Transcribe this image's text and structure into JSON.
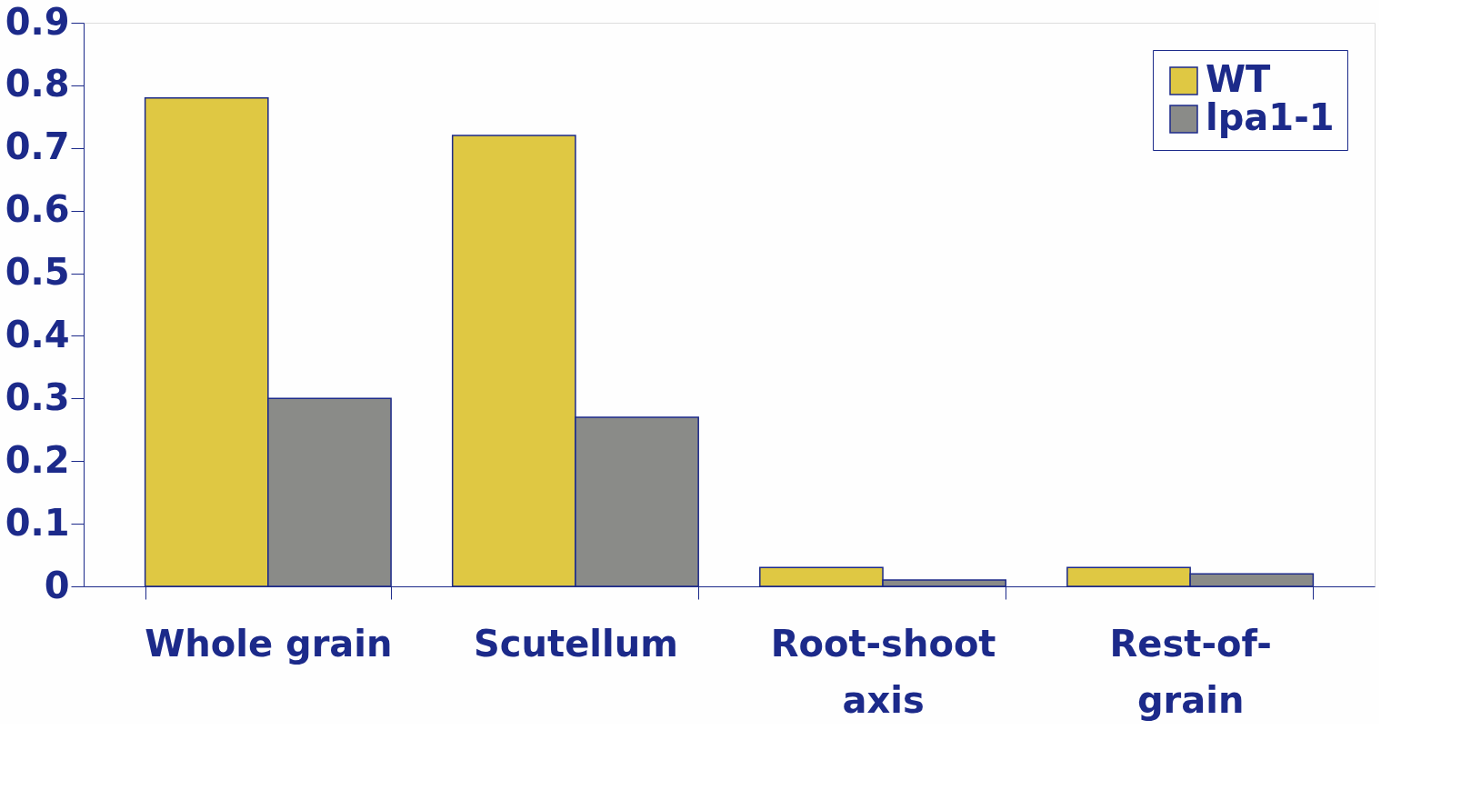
{
  "chart_data": {
    "type": "bar",
    "categories": [
      "Whole grain",
      "Scutellum",
      "Root-shoot axis",
      "Rest-of-grain"
    ],
    "series": [
      {
        "name": "WT",
        "color": "#dfc843",
        "values": [
          0.78,
          0.72,
          0.03,
          0.03
        ]
      },
      {
        "name": "lpa1-1",
        "color": "#8a8b88",
        "values": [
          0.3,
          0.27,
          0.01,
          0.02
        ]
      }
    ],
    "ylim": [
      0,
      0.9
    ],
    "yticks": [
      0,
      0.1,
      0.2,
      0.3,
      0.4,
      0.5,
      0.6,
      0.7,
      0.8,
      0.9
    ],
    "grid": false,
    "legend": "top right"
  }
}
